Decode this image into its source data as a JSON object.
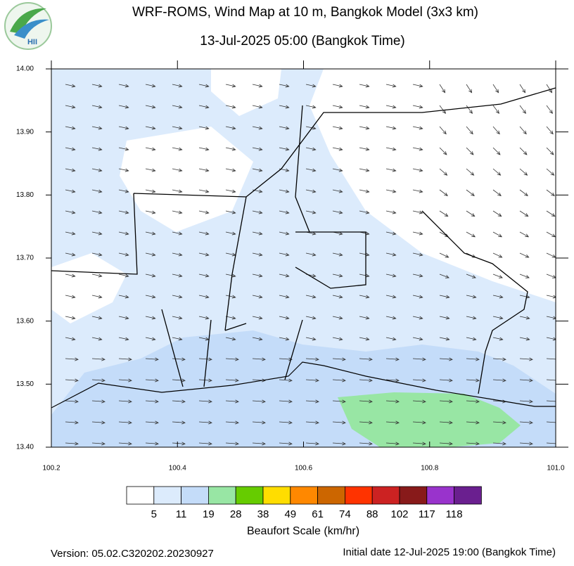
{
  "header": {
    "logo_text": "HII",
    "title": "WRF-ROMS, Wind Map at 10 m, Bangkok Model (3x3 km)",
    "subtitle": "13-Jul-2025 05:00 (Bangkok Time)"
  },
  "map": {
    "lon_ticks": [
      "100.2",
      "100.4",
      "100.6",
      "100.8",
      "101.0"
    ],
    "lat_ticks": [
      "14.00",
      "13.90",
      "13.80",
      "13.70",
      "13.60",
      "13.50",
      "13.40"
    ]
  },
  "legend": {
    "colors": [
      "#ffffff",
      "#dcebfc",
      "#c4dcf9",
      "#98e6a4",
      "#66cc00",
      "#ffdd00",
      "#ff8800",
      "#cc6600",
      "#ff3300",
      "#cc2222",
      "#881a1a",
      "#9933cc",
      "#6a1f8f"
    ],
    "labels": [
      "5",
      "11",
      "19",
      "28",
      "38",
      "49",
      "61",
      "74",
      "88",
      "102",
      "117",
      "118"
    ],
    "title": "Beaufort Scale (km/hr)"
  },
  "footer": {
    "version": "Version: 05.02.C320202.20230927",
    "initial_date": "Initial date 12-Jul-2025 19:00 (Bangkok Time)"
  }
}
